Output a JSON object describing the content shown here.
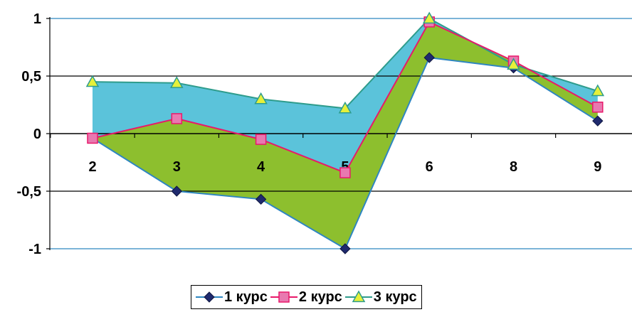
{
  "chart_data": {
    "type": "line",
    "categories": [
      "2",
      "3",
      "4",
      "5",
      "6",
      "8",
      "9"
    ],
    "ylim": [
      -1,
      1
    ],
    "yticks": [
      {
        "value": 1,
        "label": "1"
      },
      {
        "value": 0.5,
        "label": "0,5"
      },
      {
        "value": 0,
        "label": "0"
      },
      {
        "value": -0.5,
        "label": "-0,5"
      },
      {
        "value": -1,
        "label": "-1"
      }
    ],
    "grid": true,
    "legend_position": "bottom",
    "series": [
      {
        "name": "1 курс",
        "color": "#1F2A6E",
        "marker": "diamond",
        "values": [
          -0.04,
          -0.5,
          -0.57,
          -1.0,
          0.66,
          0.57,
          0.11
        ]
      },
      {
        "name": "2 курс",
        "color": "#E8196A",
        "marker": "square",
        "values": [
          -0.04,
          0.13,
          -0.05,
          -0.34,
          0.97,
          0.63,
          0.23
        ]
      },
      {
        "name": "3 курс",
        "color": "#2E9C8C",
        "marker": "triangle",
        "values": [
          0.45,
          0.44,
          0.3,
          0.22,
          1.0,
          0.6,
          0.37
        ]
      }
    ],
    "fill_colors": {
      "between_1_and_2": "#8DBF2E",
      "between_2_and_3": "#5BC3DA"
    }
  }
}
